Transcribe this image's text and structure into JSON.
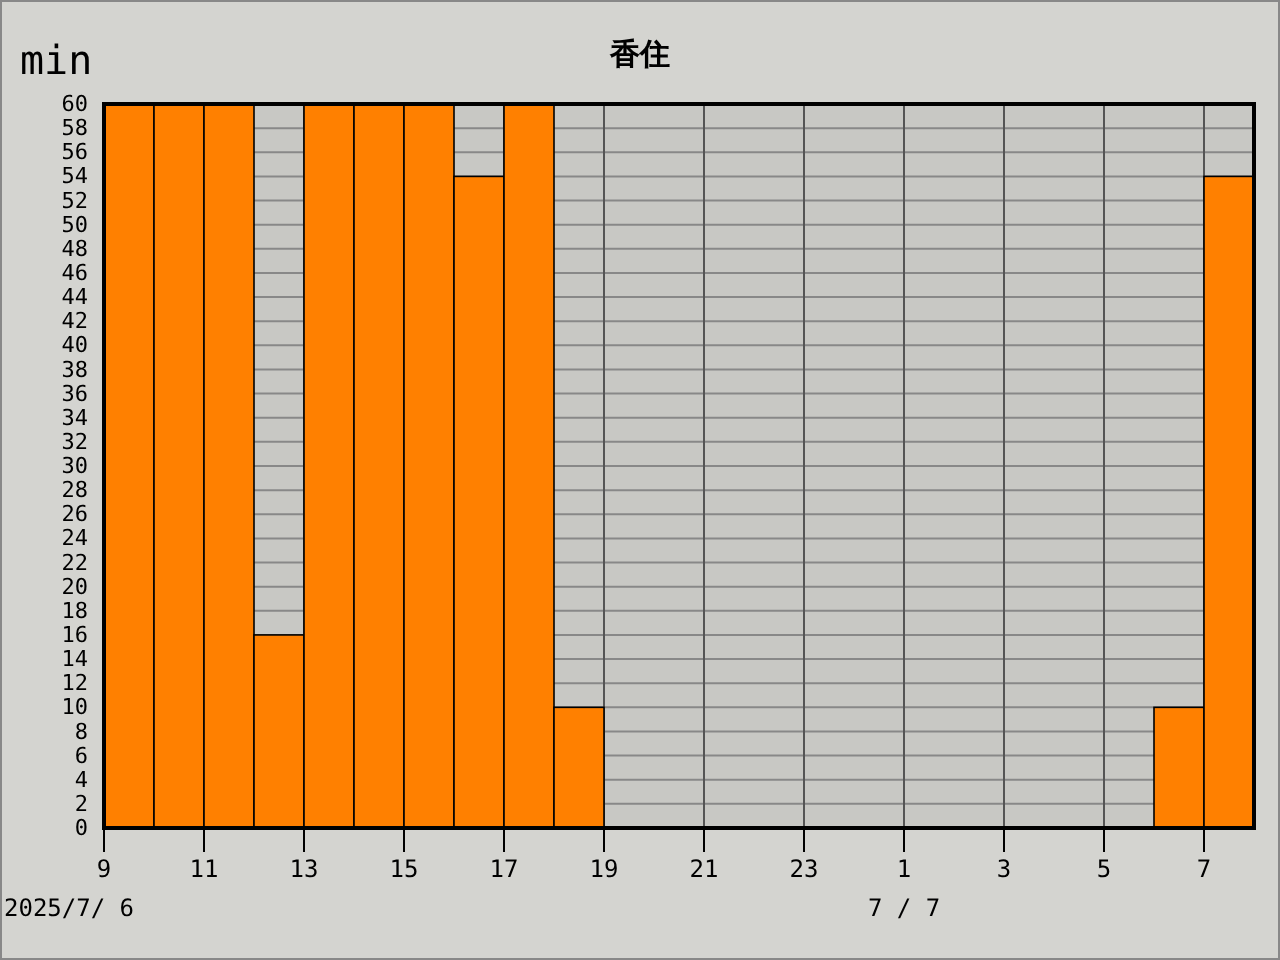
{
  "chart_data": {
    "type": "bar",
    "title": "香住",
    "ylabel": "min",
    "categories": [
      "9",
      null,
      "11",
      null,
      "13",
      null,
      "15",
      null,
      "17",
      null,
      "19",
      null,
      "21",
      null,
      "23",
      null,
      "1",
      null,
      "3",
      null,
      "5",
      null,
      "7"
    ],
    "values": [
      60,
      60,
      60,
      16,
      60,
      60,
      60,
      54,
      60,
      10,
      0,
      0,
      0,
      0,
      0,
      0,
      0,
      0,
      0,
      0,
      0,
      10,
      54
    ],
    "color": "#ff8000",
    "ylim": [
      0,
      60
    ],
    "yticks": [
      0,
      2,
      4,
      6,
      8,
      10,
      12,
      14,
      16,
      18,
      20,
      22,
      24,
      26,
      28,
      30,
      32,
      34,
      36,
      38,
      40,
      42,
      44,
      46,
      48,
      50,
      52,
      54,
      56,
      58,
      60
    ],
    "grid": true,
    "annotations": [
      "2025/7/ 6",
      "7 / 7"
    ]
  }
}
